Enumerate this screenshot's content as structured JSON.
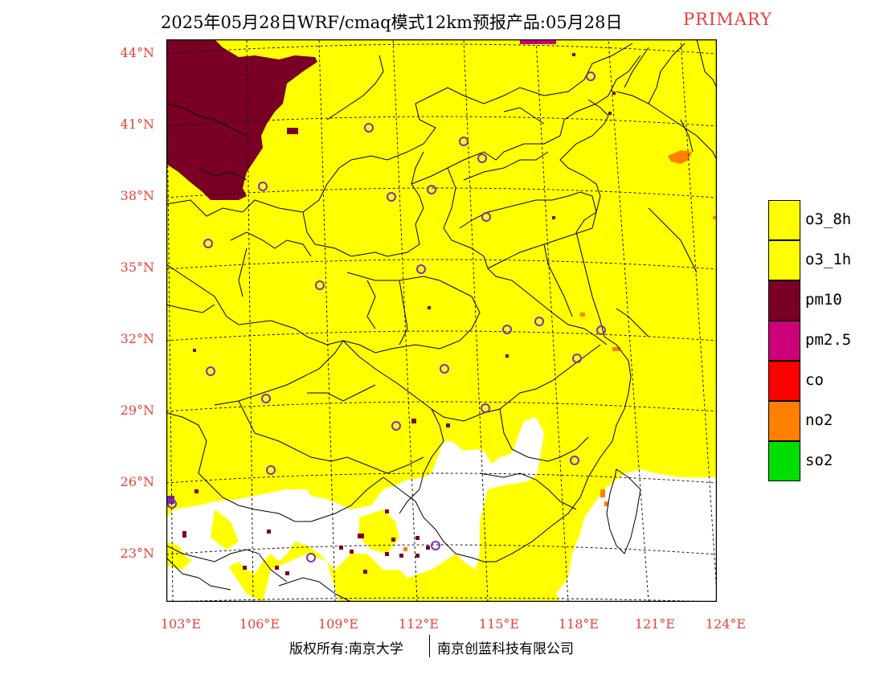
{
  "header": {
    "title": "2025年05月28日WRF/cmaq模式12km预报产品:05月28日",
    "pollutant_label": "PRIMARY"
  },
  "map": {
    "latitude_labels": [
      "44°N",
      "41°N",
      "38°N",
      "35°N",
      "32°N",
      "29°N",
      "26°N",
      "23°N"
    ],
    "longitude_labels": [
      "103°E",
      "106°E",
      "109°E",
      "112°E",
      "115°E",
      "118°E",
      "121°E",
      "124°E"
    ],
    "colors": {
      "o3": "#ffff00",
      "pm10": "#7a0025",
      "pm25": "#cc0077",
      "no2": "#ff7f00",
      "outline": "#000000",
      "station_marker": "#7b2fbf"
    },
    "station_marker_icon": "circle-outline-icon"
  },
  "legend": {
    "items": [
      {
        "label": "o3_8h",
        "color": "#ffff00"
      },
      {
        "label": "o3_1h",
        "color": "#ffff00"
      },
      {
        "label": "pm10",
        "color": "#7a0025"
      },
      {
        "label": "pm2.5",
        "color": "#cc0077"
      },
      {
        "label": "co",
        "color": "#ff0000"
      },
      {
        "label": "no2",
        "color": "#ff7f00"
      },
      {
        "label": "so2",
        "color": "#00dd00"
      }
    ]
  },
  "footer": {
    "copyright_left": "版权所有:南京大学",
    "copyright_right": "南京创蓝科技有限公司"
  }
}
